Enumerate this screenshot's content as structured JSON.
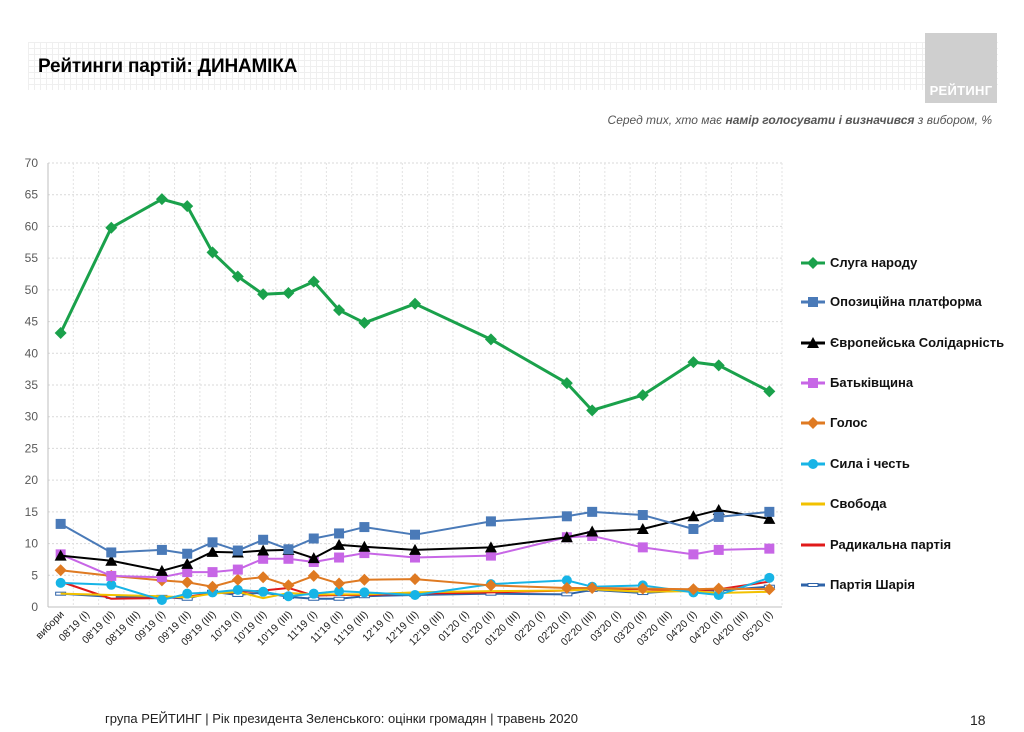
{
  "header": {
    "title": "Рейтинги партій: ДИНАМІКА",
    "logo_text": "РЕЙТИНГ",
    "subtitle_pre": "Серед тих, хто має ",
    "subtitle_bold": "намір голосувати і визначився",
    "subtitle_post": " з вибором, %"
  },
  "footer": {
    "text": "група РЕЙТИНГ |  Рік президента Зеленського: оцінки громадян | травень 2020",
    "page": "18"
  },
  "chart_data": {
    "type": "line",
    "ylim": [
      0,
      70
    ],
    "yticks": [
      0,
      5,
      10,
      15,
      20,
      25,
      30,
      35,
      40,
      45,
      50,
      55,
      60,
      65,
      70
    ],
    "grid": true,
    "legend_position": "right",
    "categories": [
      "вибори",
      "08'19 (І)",
      "08'19 (ІІ)",
      "08'19 (ІІІ)",
      "09'19 (І)",
      "09'19 (ІІ)",
      "09'19 (ІІІ)",
      "10'19 (І)",
      "10'19 (ІІ)",
      "10'19 (ІІІ)",
      "11'19 (І)",
      "11'19 (ІІ)",
      "11'19 (ІІІ)",
      "12'19 (І)",
      "12'19 (ІІ)",
      "12'19 (ІІІ)",
      "01'20 (І)",
      "01'20 (ІІ)",
      "01'20 (ІІІ)",
      "02'20 (І)",
      "02'20 (ІІ)",
      "02'20 (ІІІ)",
      "03'20 (І)",
      "03'20 (ІІ)",
      "03'20 (ІІІ)",
      "04'20 (І)",
      "04'20 (ІІ)",
      "04'20 (ІІІ)",
      "05'20 (І)"
    ],
    "series": [
      {
        "name": "Слуга народу",
        "color": "#1aa14b",
        "marker": "diamond",
        "width": 3,
        "points": [
          [
            0,
            43.2
          ],
          [
            2,
            59.8
          ],
          [
            4,
            64.3
          ],
          [
            5,
            63.2
          ],
          [
            6,
            55.9
          ],
          [
            7,
            52.1
          ],
          [
            8,
            49.3
          ],
          [
            9,
            49.5
          ],
          [
            10,
            51.3
          ],
          [
            11,
            46.8
          ],
          [
            12,
            44.8
          ],
          [
            14,
            47.8
          ],
          [
            17,
            42.2
          ],
          [
            20,
            35.3
          ],
          [
            21,
            31.0
          ],
          [
            23,
            33.4
          ],
          [
            25,
            38.6
          ],
          [
            26,
            38.1
          ],
          [
            28,
            34.0
          ]
        ]
      },
      {
        "name": "Опозиційна платформа",
        "color": "#4a7ab8",
        "marker": "square",
        "width": 2,
        "points": [
          [
            0,
            13.1
          ],
          [
            2,
            8.6
          ],
          [
            4,
            9.0
          ],
          [
            5,
            8.4
          ],
          [
            6,
            10.2
          ],
          [
            7,
            8.9
          ],
          [
            8,
            10.6
          ],
          [
            9,
            9.1
          ],
          [
            10,
            10.8
          ],
          [
            11,
            11.6
          ],
          [
            12,
            12.6
          ],
          [
            14,
            11.4
          ],
          [
            17,
            13.5
          ],
          [
            20,
            14.3
          ],
          [
            21,
            15.0
          ],
          [
            23,
            14.5
          ],
          [
            25,
            12.3
          ],
          [
            26,
            14.2
          ],
          [
            28,
            15.0
          ]
        ]
      },
      {
        "name": "Європейська Солідарність",
        "color": "#000000",
        "marker": "triangle",
        "width": 2,
        "points": [
          [
            0,
            8.1
          ],
          [
            2,
            7.3
          ],
          [
            4,
            5.7
          ],
          [
            5,
            6.8
          ],
          [
            6,
            8.7
          ],
          [
            7,
            8.6
          ],
          [
            8,
            8.9
          ],
          [
            9,
            9.0
          ],
          [
            10,
            7.7
          ],
          [
            11,
            9.8
          ],
          [
            12,
            9.5
          ],
          [
            14,
            9.0
          ],
          [
            17,
            9.4
          ],
          [
            20,
            11.0
          ],
          [
            21,
            11.9
          ],
          [
            23,
            12.3
          ],
          [
            25,
            14.3
          ],
          [
            26,
            15.3
          ],
          [
            28,
            13.9
          ]
        ]
      },
      {
        "name": "Батьківщина",
        "color": "#c766e6",
        "marker": "square",
        "width": 2,
        "points": [
          [
            0,
            8.3
          ],
          [
            2,
            4.9
          ],
          [
            4,
            4.7
          ],
          [
            5,
            5.5
          ],
          [
            6,
            5.5
          ],
          [
            7,
            5.9
          ],
          [
            8,
            7.6
          ],
          [
            9,
            7.6
          ],
          [
            10,
            7.1
          ],
          [
            11,
            7.8
          ],
          [
            12,
            8.5
          ],
          [
            14,
            7.8
          ],
          [
            17,
            8.1
          ],
          [
            20,
            11.0
          ],
          [
            21,
            11.2
          ],
          [
            23,
            9.4
          ],
          [
            25,
            8.3
          ],
          [
            26,
            9.0
          ],
          [
            28,
            9.2
          ]
        ]
      },
      {
        "name": "Голос",
        "color": "#df7a22",
        "marker": "diamond",
        "width": 2,
        "points": [
          [
            0,
            5.8
          ],
          [
            2,
            4.9
          ],
          [
            4,
            4.2
          ],
          [
            5,
            3.9
          ],
          [
            6,
            3.2
          ],
          [
            7,
            4.3
          ],
          [
            8,
            4.7
          ],
          [
            9,
            3.4
          ],
          [
            10,
            4.9
          ],
          [
            11,
            3.7
          ],
          [
            12,
            4.3
          ],
          [
            14,
            4.4
          ],
          [
            17,
            3.4
          ],
          [
            20,
            3.0
          ],
          [
            21,
            3.0
          ],
          [
            23,
            2.9
          ],
          [
            25,
            2.8
          ],
          [
            26,
            2.9
          ],
          [
            28,
            2.8
          ]
        ]
      },
      {
        "name": "Сила і честь",
        "color": "#17b4e6",
        "marker": "circle",
        "width": 2,
        "points": [
          [
            0,
            3.8
          ],
          [
            2,
            3.5
          ],
          [
            4,
            1.1
          ],
          [
            5,
            2.1
          ],
          [
            6,
            2.3
          ],
          [
            7,
            2.7
          ],
          [
            8,
            2.4
          ],
          [
            9,
            1.7
          ],
          [
            10,
            2.1
          ],
          [
            11,
            2.5
          ],
          [
            12,
            2.3
          ],
          [
            14,
            1.9
          ],
          [
            17,
            3.6
          ],
          [
            20,
            4.2
          ],
          [
            21,
            3.2
          ],
          [
            23,
            3.4
          ],
          [
            25,
            2.3
          ],
          [
            26,
            1.9
          ],
          [
            28,
            4.6
          ]
        ]
      },
      {
        "name": "Свобода",
        "color": "#f2c100",
        "marker": "none",
        "width": 2,
        "points": [
          [
            0,
            2.1
          ],
          [
            2,
            1.9
          ],
          [
            4,
            1.7
          ],
          [
            5,
            1.5
          ],
          [
            6,
            2.1
          ],
          [
            7,
            2.4
          ],
          [
            8,
            1.4
          ],
          [
            9,
            2.2
          ],
          [
            10,
            2.0
          ],
          [
            11,
            2.0
          ],
          [
            12,
            2.0
          ],
          [
            14,
            2.3
          ],
          [
            17,
            2.5
          ],
          [
            20,
            2.6
          ],
          [
            21,
            2.8
          ],
          [
            23,
            2.4
          ],
          [
            25,
            2.5
          ],
          [
            26,
            2.2
          ],
          [
            28,
            2.4
          ]
        ]
      },
      {
        "name": "Радикальна партія",
        "color": "#e01a1a",
        "marker": "none",
        "width": 2,
        "points": [
          [
            0,
            4.0
          ],
          [
            2,
            1.3
          ],
          [
            4,
            1.4
          ],
          [
            5,
            1.6
          ],
          [
            6,
            2.2
          ],
          [
            7,
            2.3
          ],
          [
            8,
            2.6
          ],
          [
            9,
            3.0
          ],
          [
            10,
            1.8
          ],
          [
            11,
            1.9
          ],
          [
            12,
            1.9
          ],
          [
            14,
            2.1
          ],
          [
            17,
            2.3
          ],
          [
            20,
            2.6
          ],
          [
            21,
            2.9
          ],
          [
            23,
            2.8
          ],
          [
            25,
            2.6
          ],
          [
            26,
            2.8
          ],
          [
            28,
            4.0
          ]
        ]
      },
      {
        "name": "Партія Шарія",
        "color": "#2e63a8",
        "marker": "hollow-line",
        "width": 2,
        "points": [
          [
            0,
            2.1
          ],
          [
            2,
            1.6
          ],
          [
            4,
            1.6
          ],
          [
            5,
            1.3
          ],
          [
            6,
            2.4
          ],
          [
            7,
            1.9
          ],
          [
            8,
            2.3
          ],
          [
            9,
            1.6
          ],
          [
            10,
            1.3
          ],
          [
            11,
            1.3
          ],
          [
            12,
            1.7
          ],
          [
            14,
            1.9
          ],
          [
            17,
            2.1
          ],
          [
            20,
            2.0
          ],
          [
            21,
            2.7
          ],
          [
            23,
            2.2
          ],
          [
            25,
            2.7
          ],
          [
            26,
            2.6
          ],
          [
            28,
            3.2
          ]
        ]
      }
    ]
  }
}
